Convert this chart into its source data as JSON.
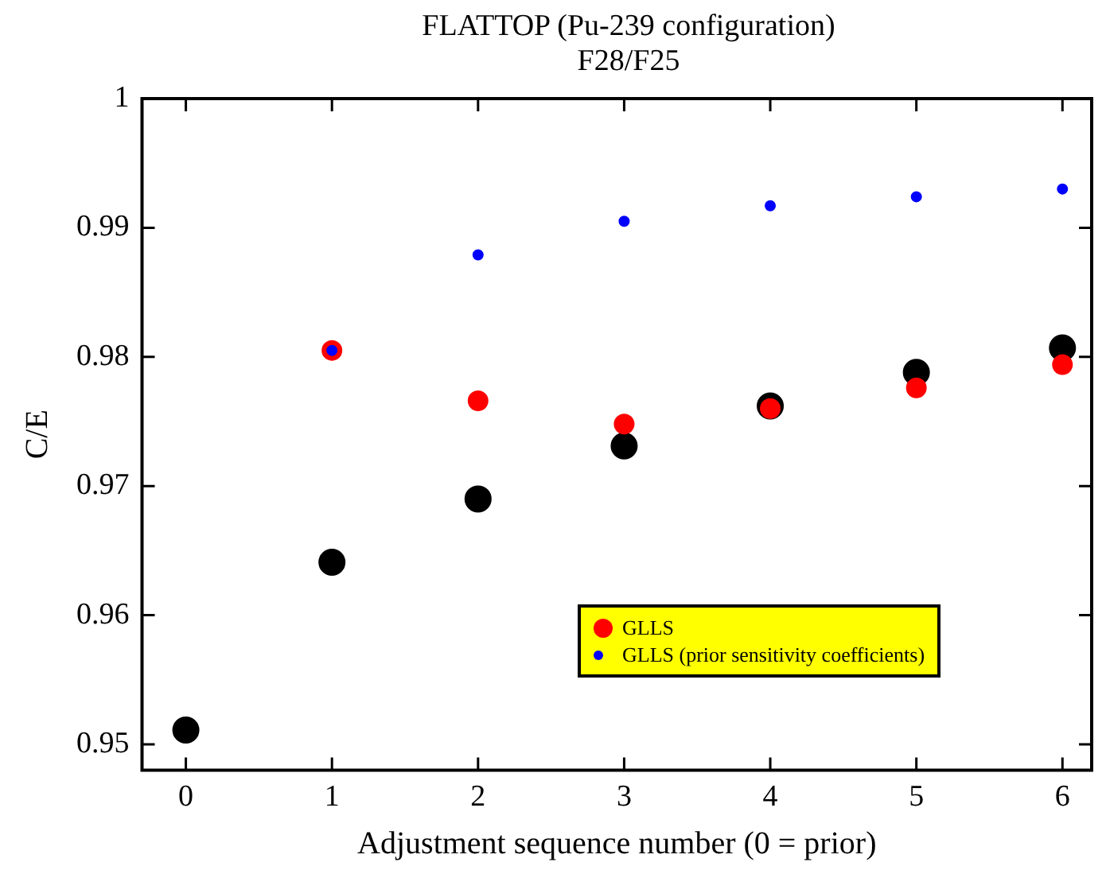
{
  "chart_data": {
    "type": "scatter",
    "title": "FLATTOP (Pu-239 configuration)",
    "subtitle": "F28/F25",
    "xlabel": "Adjustment sequence number (0 = prior)",
    "ylabel": "C/E",
    "series": [
      {
        "color": "#000000",
        "x": [
          0,
          1,
          2,
          3,
          4,
          5,
          6
        ],
        "values": [
          0.9511,
          0.9641,
          0.969,
          0.9731,
          0.9762,
          0.9788,
          0.9807
        ]
      },
      {
        "name": "GLLS",
        "color": "#ff0000",
        "x": [
          1,
          2,
          3,
          4,
          5,
          6
        ],
        "values": [
          0.9805,
          0.9766,
          0.9748,
          0.976,
          0.9776,
          0.9794
        ]
      },
      {
        "name": "GLLS (prior sensitivity coefficients)",
        "color": "#0000ff",
        "x": [
          1,
          2,
          3,
          4,
          5,
          6
        ],
        "values": [
          0.9805,
          0.9879,
          0.9905,
          0.9917,
          0.9924,
          0.993
        ]
      }
    ],
    "xlim": [
      -0.3,
      6.2
    ],
    "xticks": [
      0,
      1,
      2,
      3,
      4,
      5,
      6
    ],
    "ylim": [
      0.948,
      1
    ],
    "yticks": [
      0.95,
      0.96,
      0.97,
      0.98,
      0.99,
      1
    ],
    "grid": false,
    "legend": "bottom right",
    "marker": "circle"
  }
}
